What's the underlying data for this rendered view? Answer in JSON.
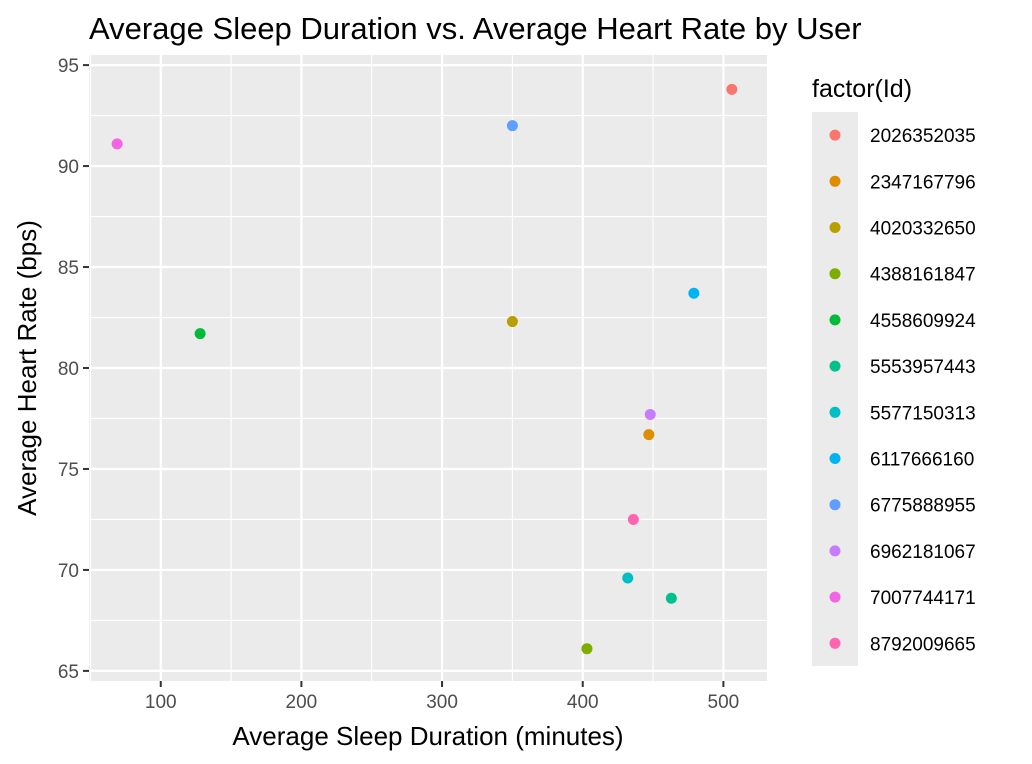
{
  "chart_data": {
    "type": "scatter",
    "title": "Average Sleep Duration vs. Average Heart Rate by User",
    "xlabel": "Average Sleep Duration (minutes)",
    "ylabel": "Average Heart Rate (bps)",
    "xlim": [
      49,
      531
    ],
    "ylim": [
      64.5,
      95.5
    ],
    "x_ticks": [
      100,
      200,
      300,
      400,
      500
    ],
    "y_ticks": [
      65,
      70,
      75,
      80,
      85,
      90,
      95
    ],
    "grid": true,
    "legend_position": "right",
    "legend_title": "factor(Id)",
    "series": [
      {
        "name": "2026352035",
        "color": "#F8766D",
        "x": 506,
        "y": 93.8
      },
      {
        "name": "2347167796",
        "color": "#DE8C00",
        "x": 447,
        "y": 76.7
      },
      {
        "name": "4020332650",
        "color": "#B79F00",
        "x": 350,
        "y": 82.3
      },
      {
        "name": "4388161847",
        "color": "#7CAE00",
        "x": 403,
        "y": 66.1
      },
      {
        "name": "4558609924",
        "color": "#00BA38",
        "x": 128,
        "y": 81.7
      },
      {
        "name": "5553957443",
        "color": "#00C08B",
        "x": 463,
        "y": 68.6
      },
      {
        "name": "5577150313",
        "color": "#00BFC4",
        "x": 432,
        "y": 69.6
      },
      {
        "name": "6117666160",
        "color": "#00B4F0",
        "x": 479,
        "y": 83.7
      },
      {
        "name": "6775888955",
        "color": "#619CFF",
        "x": 350,
        "y": 92.0
      },
      {
        "name": "6962181067",
        "color": "#C77CFF",
        "x": 448,
        "y": 77.7
      },
      {
        "name": "7007744171",
        "color": "#F564E3",
        "x": 69,
        "y": 91.1
      },
      {
        "name": "8792009665",
        "color": "#FF64B0",
        "x": 436,
        "y": 72.5
      }
    ]
  }
}
